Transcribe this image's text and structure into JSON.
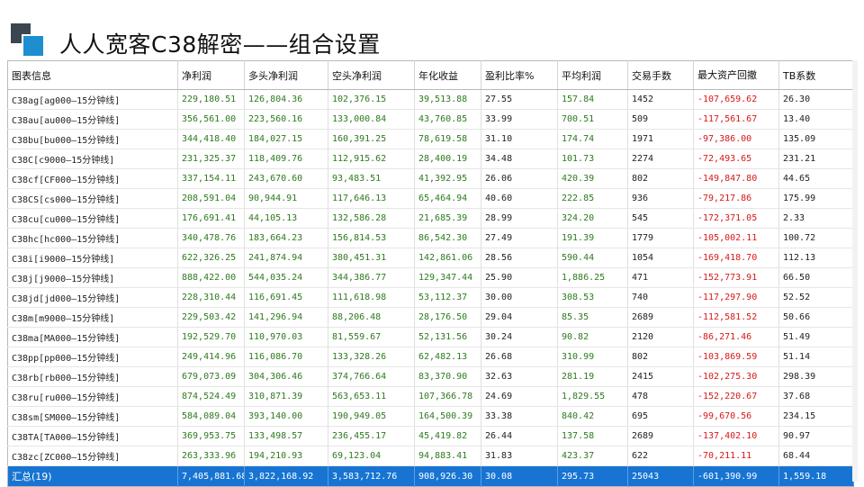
{
  "title": "人人宽客C38解密——组合设置",
  "table": {
    "headers": [
      "图表信息",
      "净利润",
      "多头净利润",
      "空头净利润",
      "年化收益",
      "盈利比率%",
      "平均利润",
      "交易手数",
      "最大资产回撤",
      "TB系数"
    ],
    "rows": [
      [
        "C38ag[ag000—15分钟线]",
        "229,180.51",
        "126,804.36",
        "102,376.15",
        "39,513.88",
        "27.55",
        "157.84",
        "1452",
        "-107,659.62",
        "26.30"
      ],
      [
        "C38au[au000—15分钟线]",
        "356,561.00",
        "223,560.16",
        "133,000.84",
        "43,760.85",
        "33.99",
        "700.51",
        "509",
        "-117,561.67",
        "13.40"
      ],
      [
        "C38bu[bu000—15分钟线]",
        "344,418.40",
        "184,027.15",
        "160,391.25",
        "78,619.58",
        "31.10",
        "174.74",
        "1971",
        "-97,386.00",
        "135.09"
      ],
      [
        "C38C[c9000—15分钟线]",
        "231,325.37",
        "118,409.76",
        "112,915.62",
        "28,400.19",
        "34.48",
        "101.73",
        "2274",
        "-72,493.65",
        "231.21"
      ],
      [
        "C38cf[CF000—15分钟线]",
        "337,154.11",
        "243,670.60",
        "93,483.51",
        "41,392.95",
        "26.06",
        "420.39",
        "802",
        "-149,847.80",
        "44.65"
      ],
      [
        "C38CS[cs000—15分钟线]",
        "208,591.04",
        "90,944.91",
        "117,646.13",
        "65,464.94",
        "40.60",
        "222.85",
        "936",
        "-79,217.86",
        "175.99"
      ],
      [
        "C38cu[cu000—15分钟线]",
        "176,691.41",
        "44,105.13",
        "132,586.28",
        "21,685.39",
        "28.99",
        "324.20",
        "545",
        "-172,371.05",
        "2.33"
      ],
      [
        "C38hc[hc000—15分钟线]",
        "340,478.76",
        "183,664.23",
        "156,814.53",
        "86,542.30",
        "27.49",
        "191.39",
        "1779",
        "-105,002.11",
        "100.72"
      ],
      [
        "C38i[i9000—15分钟线]",
        "622,326.25",
        "241,874.94",
        "380,451.31",
        "142,861.06",
        "28.56",
        "590.44",
        "1054",
        "-169,418.70",
        "112.13"
      ],
      [
        "C38j[j9000—15分钟线]",
        "888,422.00",
        "544,035.24",
        "344,386.77",
        "129,347.44",
        "25.90",
        "1,886.25",
        "471",
        "-152,773.91",
        "66.50"
      ],
      [
        "C38jd[jd000—15分钟线]",
        "228,310.44",
        "116,691.45",
        "111,618.98",
        "53,112.37",
        "30.00",
        "308.53",
        "740",
        "-117,297.90",
        "52.52"
      ],
      [
        "C38m[m9000—15分钟线]",
        "229,503.42",
        "141,296.94",
        "88,206.48",
        "28,176.50",
        "29.04",
        "85.35",
        "2689",
        "-112,581.52",
        "50.66"
      ],
      [
        "C38ma[MA000—15分钟线]",
        "192,529.70",
        "110,970.03",
        "81,559.67",
        "52,131.56",
        "30.24",
        "90.82",
        "2120",
        "-86,271.46",
        "51.49"
      ],
      [
        "C38pp[pp000—15分钟线]",
        "249,414.96",
        "116,086.70",
        "133,328.26",
        "62,482.13",
        "26.68",
        "310.99",
        "802",
        "-103,869.59",
        "51.14"
      ],
      [
        "C38rb[rb000—15分钟线]",
        "679,073.09",
        "304,306.46",
        "374,766.64",
        "83,370.90",
        "32.63",
        "281.19",
        "2415",
        "-102,275.30",
        "298.39"
      ],
      [
        "C38ru[ru000—15分钟线]",
        "874,524.49",
        "310,871.39",
        "563,653.11",
        "107,366.78",
        "24.69",
        "1,829.55",
        "478",
        "-152,220.67",
        "37.68"
      ],
      [
        "C38sm[SM000—15分钟线]",
        "584,089.04",
        "393,140.00",
        "190,949.05",
        "164,500.39",
        "33.38",
        "840.42",
        "695",
        "-99,670.56",
        "234.15"
      ],
      [
        "C38TA[TA000—15分钟线]",
        "369,953.75",
        "133,498.57",
        "236,455.17",
        "45,419.82",
        "26.44",
        "137.58",
        "2689",
        "-137,402.10",
        "90.97"
      ],
      [
        "C38zc[ZC000—15分钟线]",
        "263,333.96",
        "194,210.93",
        "69,123.04",
        "94,883.41",
        "31.83",
        "423.37",
        "622",
        "-70,211.11",
        "68.44"
      ]
    ],
    "total": [
      "汇总(19)",
      "7,405,881.68",
      "3,822,168.92",
      "3,583,712.76",
      "908,926.30",
      "30.08",
      "295.73",
      "25043",
      "-601,390.99",
      "1,559.18"
    ]
  },
  "colors": {
    "positive": "#2d7a1e",
    "negative": "#d81818",
    "neutral": "#222222",
    "total_bg": "#1874d2",
    "logo_blue": "#1d8fd0",
    "logo_dark": "#3c4650"
  },
  "column_styles": [
    "name",
    "g",
    "g",
    "g",
    "g",
    "k",
    "g",
    "k",
    "r",
    "k"
  ],
  "icons": {
    "logo": "stacked-squares-icon"
  }
}
